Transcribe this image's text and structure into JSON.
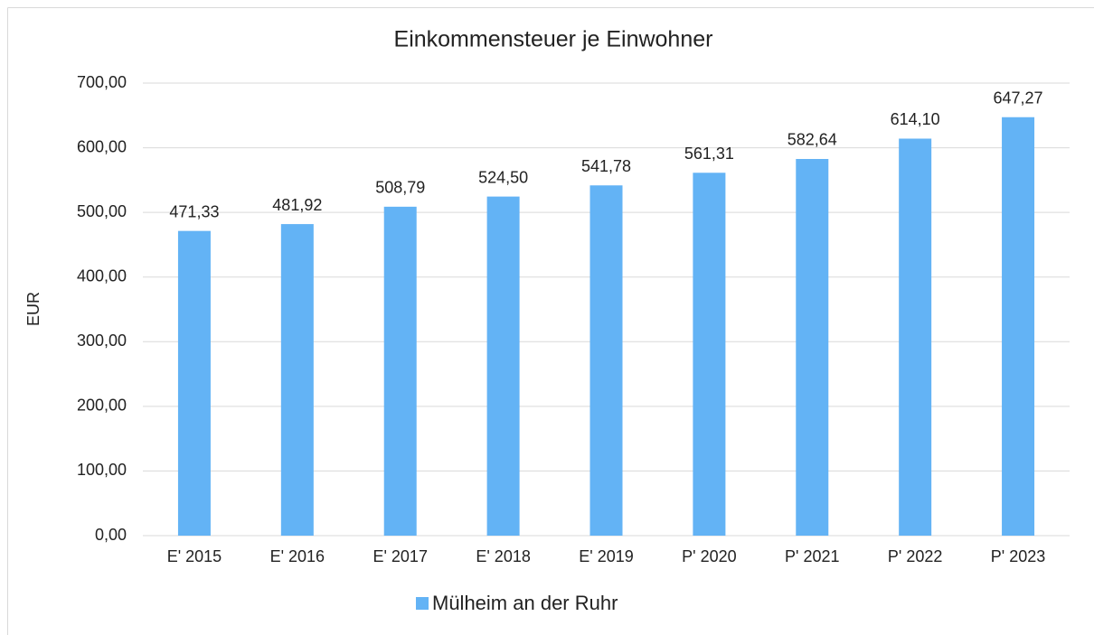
{
  "chart_data": {
    "type": "bar",
    "title": "Einkommensteuer je Einwohner",
    "y_label": "EUR",
    "categories": [
      "E' 2015",
      "E' 2016",
      "E' 2017",
      "E' 2018",
      "E' 2019",
      "P' 2020",
      "P' 2021",
      "P' 2022",
      "P' 2023"
    ],
    "series": [
      {
        "name": "Mülheim an der Ruhr",
        "color": "#63b3f5",
        "values": [
          471.33,
          481.92,
          508.79,
          524.5,
          541.78,
          561.31,
          582.64,
          614.1,
          647.27
        ],
        "value_labels": [
          "471,33",
          "481,92",
          "508,79",
          "524,50",
          "541,78",
          "561,31",
          "582,64",
          "614,10",
          "647,27"
        ]
      }
    ],
    "ylim": [
      0,
      700
    ],
    "yticks": [
      {
        "value": 0,
        "label": "0,00"
      },
      {
        "value": 100,
        "label": "100,00"
      },
      {
        "value": 200,
        "label": "200,00"
      },
      {
        "value": 300,
        "label": "300,00"
      },
      {
        "value": 400,
        "label": "400,00"
      },
      {
        "value": 500,
        "label": "500,00"
      },
      {
        "value": 600,
        "label": "600,00"
      },
      {
        "value": 700,
        "label": "700,00"
      }
    ],
    "grid": true,
    "legend": "bottom"
  }
}
